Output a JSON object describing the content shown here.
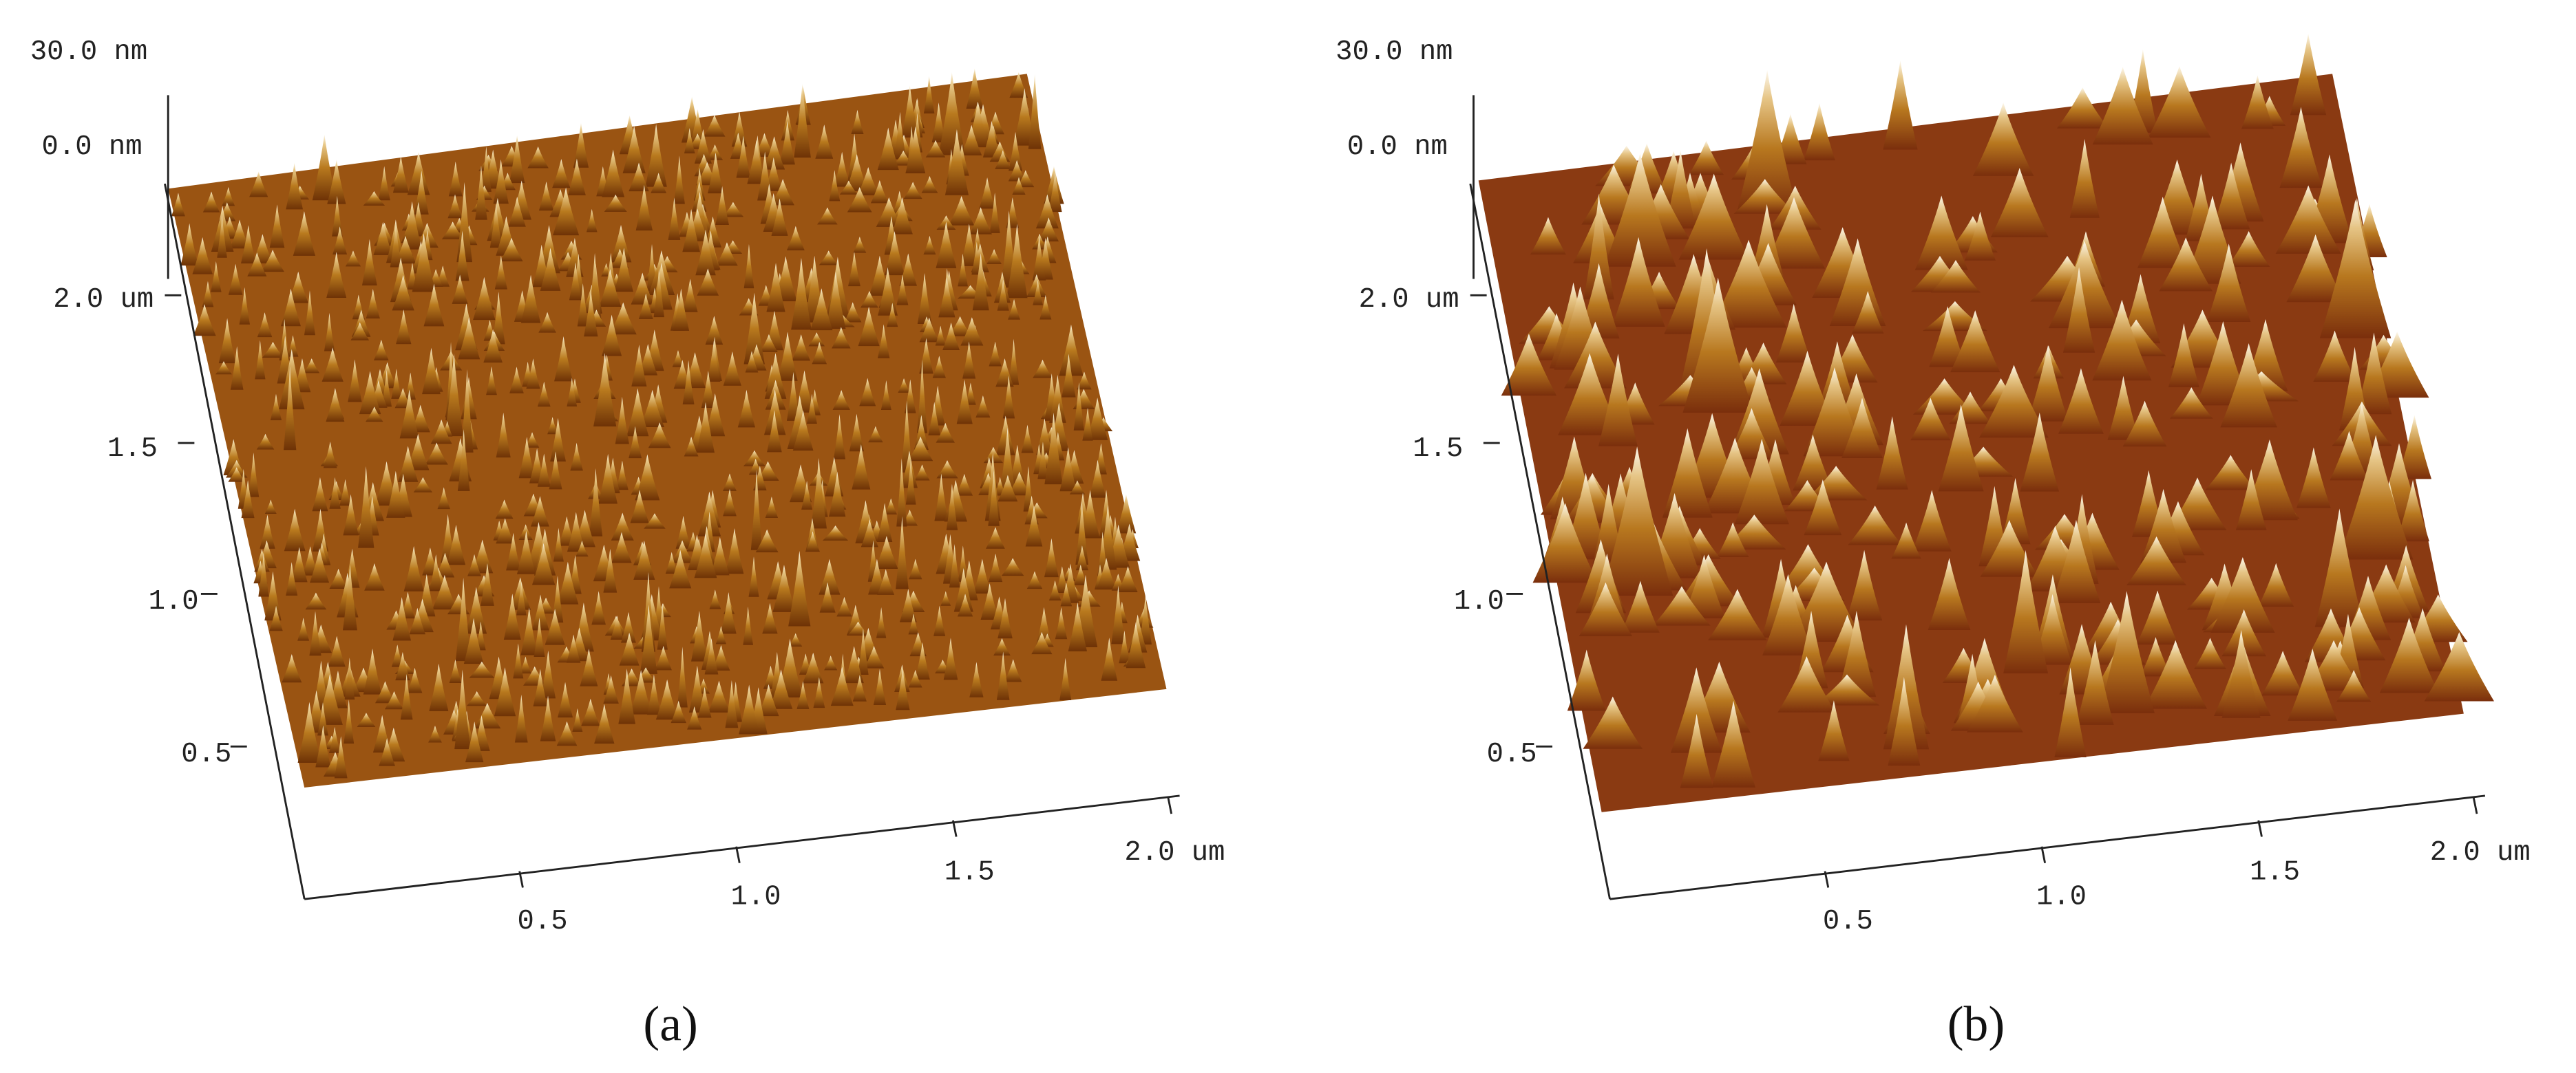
{
  "panels": [
    {
      "z_top": "30.0 nm",
      "z_bottom": "0.0 nm",
      "y_ticks": [
        "2.0 um",
        "1.5",
        "1.0",
        "0.5"
      ],
      "x_ticks": [
        "0.5",
        "1.0",
        "1.5",
        "2.0 um"
      ],
      "caption": "(a)"
    },
    {
      "z_top": "30.0 nm",
      "z_bottom": "0.0 nm",
      "y_ticks": [
        "2.0 um",
        "1.5",
        "1.0",
        "0.5"
      ],
      "x_ticks": [
        "0.5",
        "1.0",
        "1.5",
        "2.0 um"
      ],
      "caption": "(b)"
    }
  ]
}
